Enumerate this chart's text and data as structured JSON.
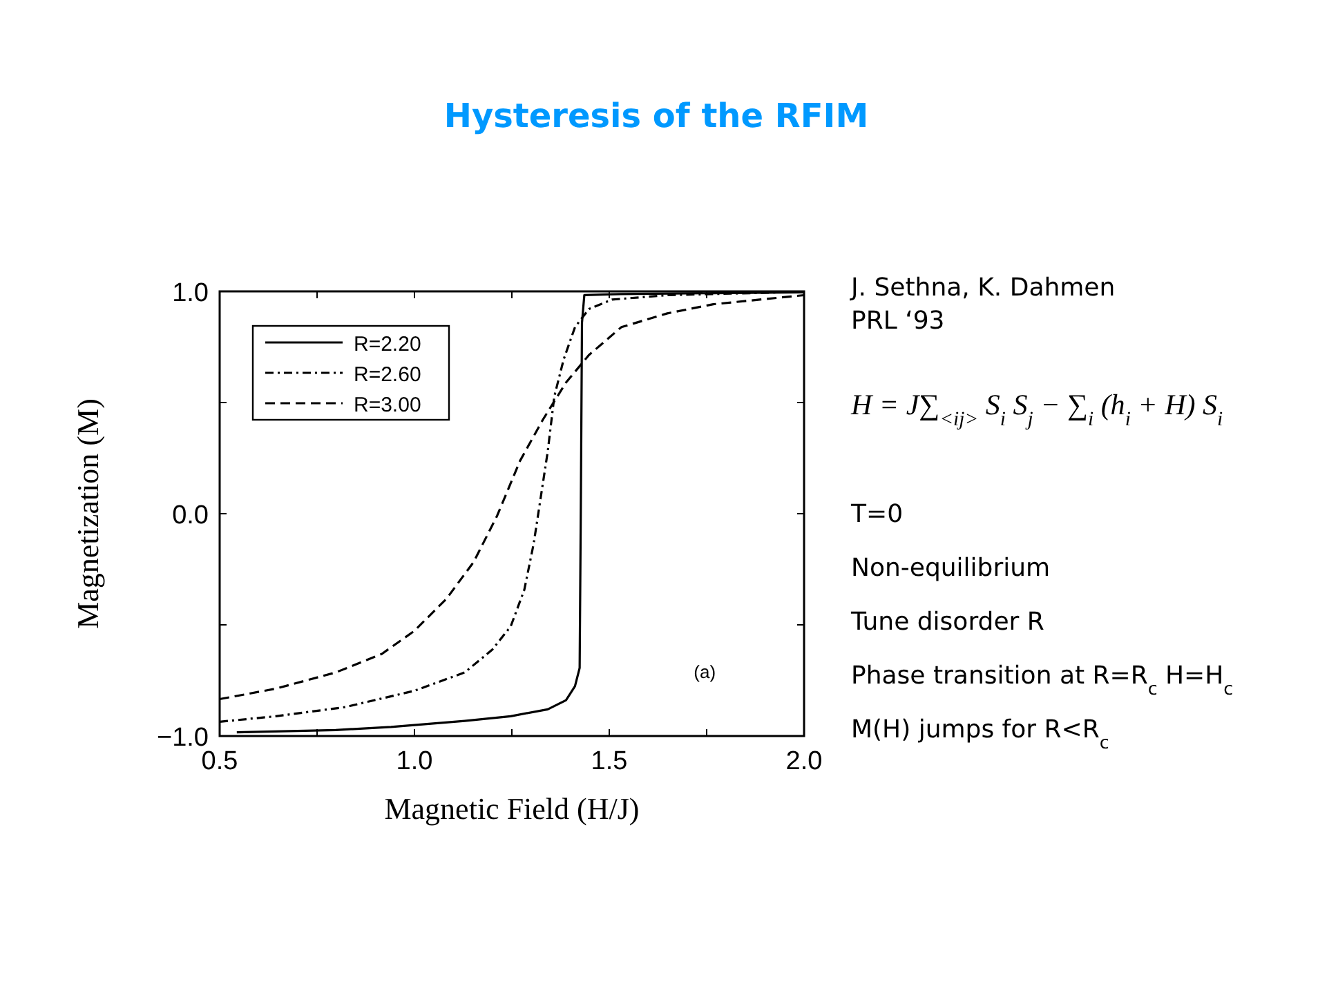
{
  "chart_data": {
    "type": "line",
    "title": "Hysteresis of the RFIM",
    "xlabel": "Magnetic Field (H/J)",
    "ylabel": "Magnetization (M)",
    "xlim": [
      0.5,
      2.0
    ],
    "ylim": [
      -1.0,
      1.0
    ],
    "xticks": [
      {
        "value": 0.5,
        "label": "0.5"
      },
      {
        "value": 0.75,
        "label": null
      },
      {
        "value": 1.0,
        "label": "1.0"
      },
      {
        "value": 1.25,
        "label": null
      },
      {
        "value": 1.5,
        "label": "1.5"
      },
      {
        "value": 1.75,
        "label": null
      },
      {
        "value": 2.0,
        "label": "2.0"
      }
    ],
    "yticks": [
      {
        "value": -1.0,
        "label": "−1.0"
      },
      {
        "value": -0.5,
        "label": null
      },
      {
        "value": 0.0,
        "label": "0.0"
      },
      {
        "value": 0.5,
        "label": null
      },
      {
        "value": 1.0,
        "label": "1.0"
      }
    ],
    "grid": false,
    "legend": "top left",
    "marker": "none",
    "series": [
      {
        "name": "R=2.20",
        "color": "#000000",
        "line_style": "solid",
        "x": [
          0.544,
          0.798,
          0.94,
          1.129,
          1.247,
          1.342,
          1.389,
          1.412,
          1.424,
          1.427,
          1.43,
          1.436,
          1.53,
          1.767,
          2.0
        ],
        "values": [
          -0.983,
          -0.973,
          -0.959,
          -0.932,
          -0.911,
          -0.88,
          -0.839,
          -0.776,
          -0.694,
          0.031,
          0.859,
          0.983,
          0.988,
          0.992,
          0.996
        ]
      },
      {
        "name": "R=2.60",
        "color": "#000000",
        "line_style": "dashdot",
        "x": [
          0.5,
          0.644,
          0.822,
          0.999,
          1.129,
          1.2,
          1.247,
          1.282,
          1.306,
          1.324,
          1.342,
          1.359,
          1.383,
          1.412,
          1.448,
          1.507,
          1.649,
          2.0
        ],
        "values": [
          -0.936,
          -0.911,
          -0.87,
          -0.797,
          -0.714,
          -0.611,
          -0.507,
          -0.342,
          -0.135,
          0.072,
          0.279,
          0.528,
          0.694,
          0.839,
          0.921,
          0.963,
          0.983,
          0.998
        ]
      },
      {
        "name": "R=3.00",
        "color": "#000000",
        "line_style": "dashed",
        "x": [
          0.5,
          0.644,
          0.798,
          0.916,
          0.999,
          1.082,
          1.152,
          1.212,
          1.271,
          1.33,
          1.389,
          1.448,
          1.531,
          1.649,
          1.767,
          2.0
        ],
        "values": [
          -0.834,
          -0.787,
          -0.714,
          -0.631,
          -0.528,
          -0.383,
          -0.217,
          -0.01,
          0.238,
          0.424,
          0.59,
          0.714,
          0.839,
          0.901,
          0.942,
          0.983
        ]
      }
    ],
    "annotations": [
      "(a)",
      "J. Sethna, K. Dahmen",
      "PRL ‘93",
      "H = J∑$_{<ij>}$ S$_{i}$ S$_{j}$ − ∑$_{i}$ (h$_{i}$ + H) S$_{i}$",
      "T=0",
      "Non-equilibrium",
      "Tune disorder R",
      "Phase transition at R=R$_{c}$ H=H$_{c}$",
      "M(H) jumps for R<R$_{c}$"
    ]
  }
}
